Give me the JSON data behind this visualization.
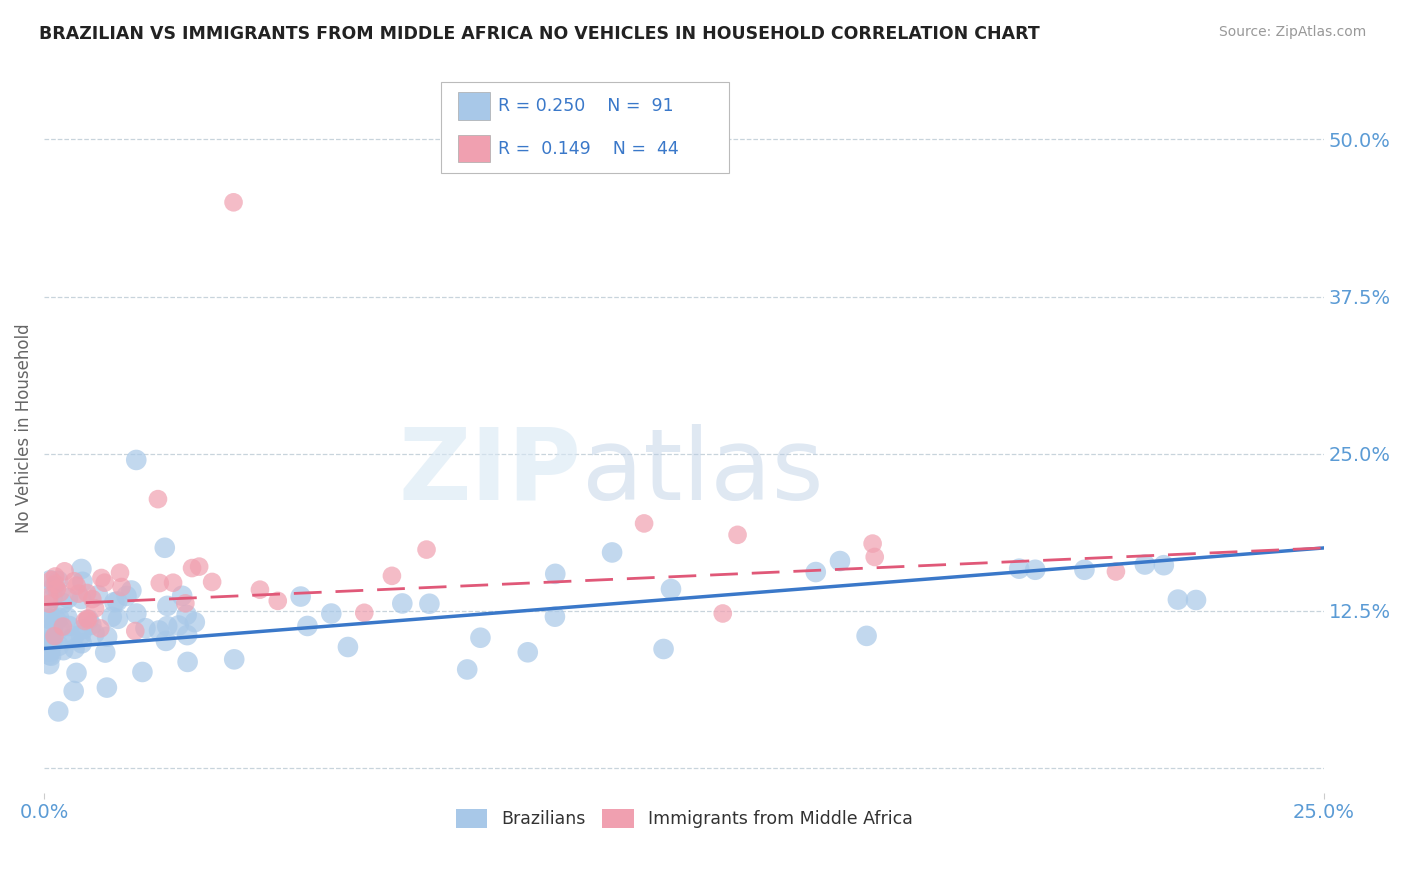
{
  "title": "BRAZILIAN VS IMMIGRANTS FROM MIDDLE AFRICA NO VEHICLES IN HOUSEHOLD CORRELATION CHART",
  "source": "Source: ZipAtlas.com",
  "ylabel": "No Vehicles in Household",
  "x_label_bottom_left": "0.0%",
  "x_label_bottom_right": "25.0%",
  "y_ticks": [
    0.0,
    0.125,
    0.25,
    0.375,
    0.5
  ],
  "y_tick_labels": [
    "",
    "12.5%",
    "25.0%",
    "37.5%",
    "50.0%"
  ],
  "xlim": [
    0.0,
    0.25
  ],
  "ylim": [
    -0.02,
    0.56
  ],
  "legend_text1": "R = 0.250   N =  91",
  "legend_text2": "R =  0.149   N =  44",
  "legend_label1": "Brazilians",
  "legend_label2": "Immigrants from Middle Africa",
  "blue_color": "#a8c8e8",
  "blue_line_color": "#3a78c9",
  "pink_color": "#f0a0b0",
  "pink_line_color": "#e05878",
  "blue_alpha": 0.7,
  "pink_alpha": 0.7,
  "watermark_zip": "ZIP",
  "watermark_atlas": "atlas",
  "background_color": "#ffffff",
  "grid_color": "#c8d4dc",
  "title_color": "#222222",
  "axis_label_color": "#666666",
  "tick_label_color": "#5b9bd5",
  "source_color": "#999999",
  "legend_text_color": "#333333",
  "legend_r_color": "#3a78c9"
}
